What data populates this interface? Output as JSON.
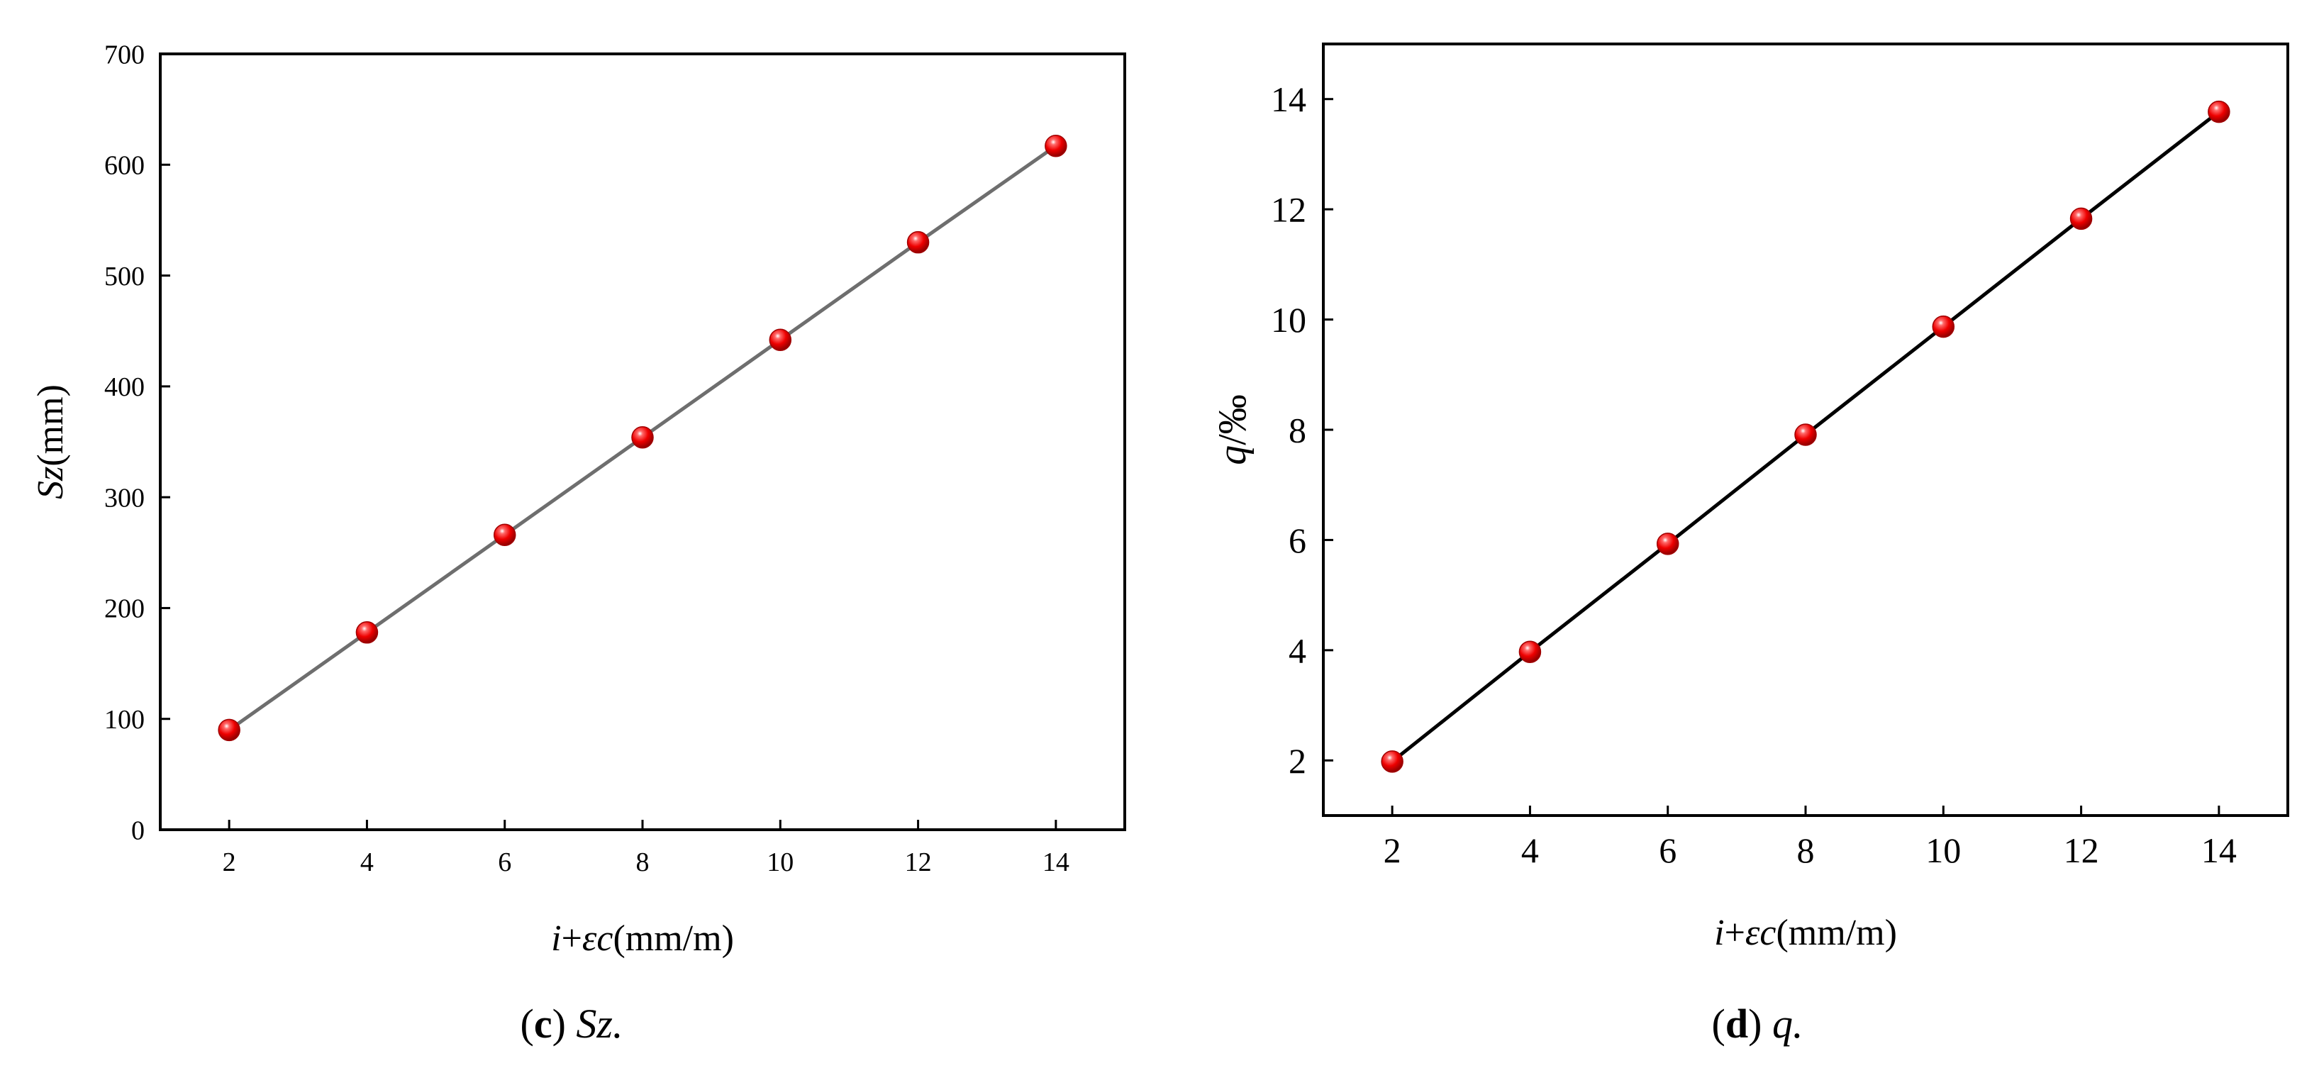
{
  "chart_data": [
    {
      "type": "line",
      "panel": "c",
      "caption_letter": "c",
      "caption_text": "Sz.",
      "x": [
        2,
        4,
        6,
        8,
        10,
        12,
        14
      ],
      "series": [
        {
          "values": [
            90,
            178,
            266,
            354,
            442,
            530,
            617
          ]
        }
      ],
      "xlabel": {
        "italic_1": "i",
        "plain_1": "+",
        "italic_2": "εc",
        "plain_2": "(mm/m)"
      },
      "ylabel": {
        "italic": "Sz",
        "plain": "(mm)"
      },
      "xlim": [
        1,
        15
      ],
      "ylim": [
        0,
        700
      ],
      "xticks": [
        2,
        4,
        6,
        8,
        10,
        12,
        14
      ],
      "yticks": [
        0,
        100,
        200,
        300,
        400,
        500,
        600,
        700
      ],
      "line_color": "#6e6e6e",
      "marker_color": "#ee0000",
      "grid": false,
      "legend": "none"
    },
    {
      "type": "line",
      "panel": "d",
      "caption_letter": "d",
      "caption_text": "q.",
      "x": [
        2,
        4,
        6,
        8,
        10,
        12,
        14
      ],
      "series": [
        {
          "values": [
            1.98,
            3.97,
            5.93,
            7.91,
            9.87,
            11.83,
            13.77
          ]
        }
      ],
      "xlabel": {
        "italic_1": "i",
        "plain_1": "+",
        "italic_2": "εc",
        "plain_2": "(mm/m)"
      },
      "ylabel": {
        "italic": "q",
        "plain": "/‰"
      },
      "xlim": [
        1,
        15
      ],
      "ylim": [
        1,
        15
      ],
      "xticks": [
        2,
        4,
        6,
        8,
        10,
        12,
        14
      ],
      "yticks": [
        2,
        4,
        6,
        8,
        10,
        12,
        14
      ],
      "line_color": "#000000",
      "marker_color": "#ee0000",
      "grid": false,
      "legend": "none"
    }
  ]
}
